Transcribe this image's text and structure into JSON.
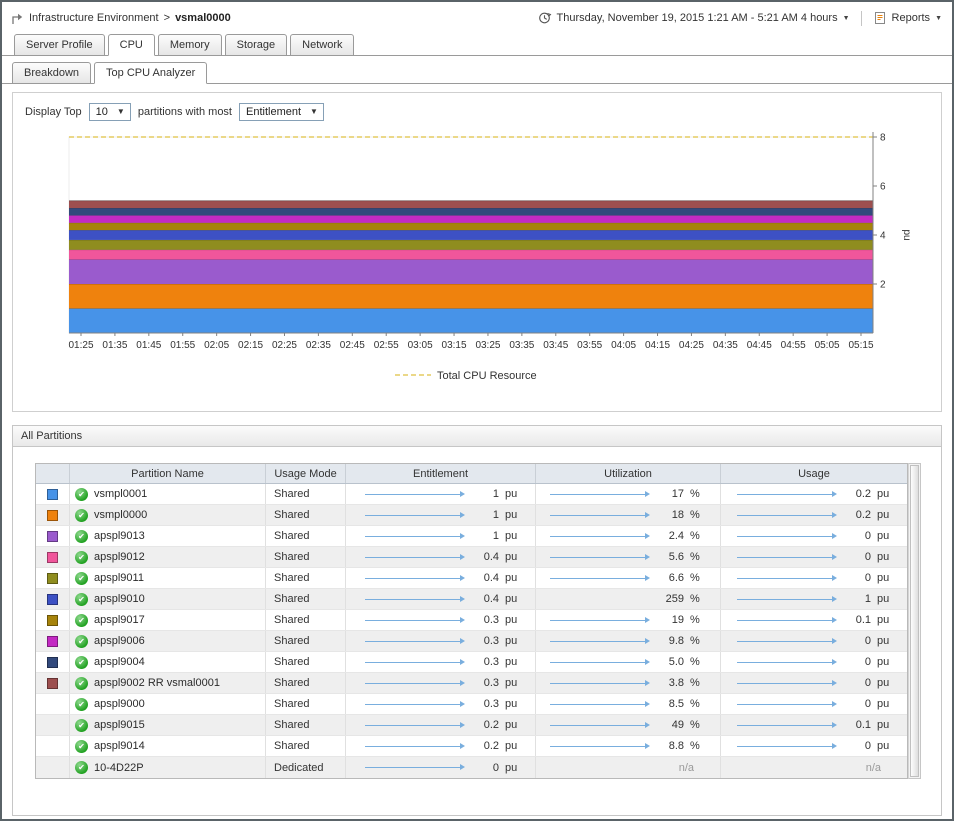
{
  "header": {
    "breadcrumb": {
      "root": "Infrastructure Environment",
      "separator": ">",
      "current": "vsmal0000"
    },
    "time_range": {
      "label": "Thursday, November 19, 2015 1:21 AM - 5:21 AM 4 hours"
    },
    "reports": {
      "label": "Reports"
    }
  },
  "tabs": {
    "items": [
      "Server Profile",
      "CPU",
      "Memory",
      "Storage",
      "Network"
    ],
    "active": "CPU"
  },
  "subtabs": {
    "items": [
      "Breakdown",
      "Top CPU Analyzer"
    ],
    "active": "Top CPU Analyzer"
  },
  "controls": {
    "label_prefix": "Display Top",
    "top_value": "10",
    "label_middle": "partitions with most",
    "metric_value": "Entitlement"
  },
  "chart_data": {
    "type": "area",
    "stacked": true,
    "title": "",
    "ylabel": "pu",
    "ylim": [
      0,
      8
    ],
    "yticks": [
      2,
      4,
      6,
      8
    ],
    "x": [
      "01:25",
      "01:35",
      "01:45",
      "01:55",
      "02:05",
      "02:15",
      "02:25",
      "02:35",
      "02:45",
      "02:55",
      "03:05",
      "03:15",
      "03:25",
      "03:35",
      "03:45",
      "03:55",
      "04:05",
      "04:15",
      "04:25",
      "04:35",
      "04:45",
      "04:55",
      "05:05",
      "05:15"
    ],
    "series_note": "each series is constant (flat) across the whole time range; stacked bottom-to-top in listed order",
    "series": [
      {
        "name": "vsmpl0001",
        "color": "#4793e8",
        "value": 1
      },
      {
        "name": "vsmpl0000",
        "color": "#ef820d",
        "value": 1
      },
      {
        "name": "apspl9013",
        "color": "#9a5bcd",
        "value": 1
      },
      {
        "name": "apspl9012",
        "color": "#f0569b",
        "value": 0.4
      },
      {
        "name": "apspl9011",
        "color": "#8f8d1f",
        "value": 0.4
      },
      {
        "name": "apspl9010",
        "color": "#3d51c4",
        "value": 0.4
      },
      {
        "name": "apspl9017",
        "color": "#a6830b",
        "value": 0.3
      },
      {
        "name": "apspl9006",
        "color": "#c32ac3",
        "value": 0.3
      },
      {
        "name": "apspl9004",
        "color": "#32497c",
        "value": 0.3
      },
      {
        "name": "apspl9002 RR vsmal0001",
        "color": "#9d4f4f",
        "value": 0.3
      }
    ],
    "total_line": {
      "label": "Total CPU Resource",
      "value": 8,
      "color": "#dfc040",
      "style": "dashed"
    },
    "legend": {
      "position": "bottom",
      "entries": [
        "Total CPU Resource"
      ]
    }
  },
  "table": {
    "title": "All Partitions",
    "columns": [
      {
        "key": "swatch",
        "label": ""
      },
      {
        "key": "name",
        "label": "Partition Name"
      },
      {
        "key": "mode",
        "label": "Usage Mode"
      },
      {
        "key": "entitlement",
        "label": "Entitlement"
      },
      {
        "key": "utilization",
        "label": "Utilization"
      },
      {
        "key": "usage",
        "label": "Usage"
      }
    ],
    "rows": [
      {
        "color": "#4793e8",
        "status": "ok",
        "name": "vsmpl0001",
        "usage_mode": "Shared",
        "entitlement": {
          "value": "1",
          "unit": "pu",
          "spark": true
        },
        "utilization": {
          "value": "17",
          "unit": "%",
          "spark": true
        },
        "usage": {
          "value": "0.2",
          "unit": "pu",
          "spark": true
        }
      },
      {
        "color": "#ef820d",
        "status": "ok",
        "name": "vsmpl0000",
        "usage_mode": "Shared",
        "entitlement": {
          "value": "1",
          "unit": "pu",
          "spark": true
        },
        "utilization": {
          "value": "18",
          "unit": "%",
          "spark": true
        },
        "usage": {
          "value": "0.2",
          "unit": "pu",
          "spark": true
        }
      },
      {
        "color": "#9a5bcd",
        "status": "ok",
        "name": "apspl9013",
        "usage_mode": "Shared",
        "entitlement": {
          "value": "1",
          "unit": "pu",
          "spark": true
        },
        "utilization": {
          "value": "2.4",
          "unit": "%",
          "spark": true
        },
        "usage": {
          "value": "0",
          "unit": "pu",
          "spark": true
        }
      },
      {
        "color": "#f0569b",
        "status": "ok",
        "name": "apspl9012",
        "usage_mode": "Shared",
        "entitlement": {
          "value": "0.4",
          "unit": "pu",
          "spark": true
        },
        "utilization": {
          "value": "5.6",
          "unit": "%",
          "spark": true
        },
        "usage": {
          "value": "0",
          "unit": "pu",
          "spark": true
        }
      },
      {
        "color": "#8f8d1f",
        "status": "ok",
        "name": "apspl9011",
        "usage_mode": "Shared",
        "entitlement": {
          "value": "0.4",
          "unit": "pu",
          "spark": true
        },
        "utilization": {
          "value": "6.6",
          "unit": "%",
          "spark": true
        },
        "usage": {
          "value": "0",
          "unit": "pu",
          "spark": true
        }
      },
      {
        "color": "#3d51c4",
        "status": "ok",
        "name": "apspl9010",
        "usage_mode": "Shared",
        "entitlement": {
          "value": "0.4",
          "unit": "pu",
          "spark": true
        },
        "utilization": {
          "value": "259",
          "unit": "%",
          "spark": false
        },
        "usage": {
          "value": "1",
          "unit": "pu",
          "spark": true
        }
      },
      {
        "color": "#a6830b",
        "status": "ok",
        "name": "apspl9017",
        "usage_mode": "Shared",
        "entitlement": {
          "value": "0.3",
          "unit": "pu",
          "spark": true
        },
        "utilization": {
          "value": "19",
          "unit": "%",
          "spark": true
        },
        "usage": {
          "value": "0.1",
          "unit": "pu",
          "spark": true
        }
      },
      {
        "color": "#c32ac3",
        "status": "ok",
        "name": "apspl9006",
        "usage_mode": "Shared",
        "entitlement": {
          "value": "0.3",
          "unit": "pu",
          "spark": true
        },
        "utilization": {
          "value": "9.8",
          "unit": "%",
          "spark": true
        },
        "usage": {
          "value": "0",
          "unit": "pu",
          "spark": true
        }
      },
      {
        "color": "#32497c",
        "status": "ok",
        "name": "apspl9004",
        "usage_mode": "Shared",
        "entitlement": {
          "value": "0.3",
          "unit": "pu",
          "spark": true
        },
        "utilization": {
          "value": "5.0",
          "unit": "%",
          "spark": true
        },
        "usage": {
          "value": "0",
          "unit": "pu",
          "spark": true
        }
      },
      {
        "color": "#9d4f4f",
        "status": "ok",
        "name": "apspl9002 RR vsmal0001",
        "usage_mode": "Shared",
        "entitlement": {
          "value": "0.3",
          "unit": "pu",
          "spark": true
        },
        "utilization": {
          "value": "3.8",
          "unit": "%",
          "spark": true
        },
        "usage": {
          "value": "0",
          "unit": "pu",
          "spark": true
        }
      },
      {
        "color": null,
        "status": "ok",
        "name": "apspl9000",
        "usage_mode": "Shared",
        "entitlement": {
          "value": "0.3",
          "unit": "pu",
          "spark": true
        },
        "utilization": {
          "value": "8.5",
          "unit": "%",
          "spark": true
        },
        "usage": {
          "value": "0",
          "unit": "pu",
          "spark": true
        }
      },
      {
        "color": null,
        "status": "ok",
        "name": "apspl9015",
        "usage_mode": "Shared",
        "entitlement": {
          "value": "0.2",
          "unit": "pu",
          "spark": true
        },
        "utilization": {
          "value": "49",
          "unit": "%",
          "spark": true
        },
        "usage": {
          "value": "0.1",
          "unit": "pu",
          "spark": true
        }
      },
      {
        "color": null,
        "status": "ok",
        "name": "apspl9014",
        "usage_mode": "Shared",
        "entitlement": {
          "value": "0.2",
          "unit": "pu",
          "spark": true
        },
        "utilization": {
          "value": "8.8",
          "unit": "%",
          "spark": true
        },
        "usage": {
          "value": "0",
          "unit": "pu",
          "spark": true
        }
      },
      {
        "color": null,
        "status": "ok",
        "name": "10-4D22P",
        "usage_mode": "Dedicated",
        "entitlement": {
          "value": "0",
          "unit": "pu",
          "spark": true
        },
        "utilization": {
          "value": "n/a",
          "unit": "",
          "spark": false
        },
        "usage": {
          "value": "n/a",
          "unit": "",
          "spark": false
        }
      }
    ]
  },
  "theme": {
    "spark_color": "#79aede",
    "total_line_color": "#dfc040",
    "status_ok_color": "#21a121",
    "header_bg": "#e3e8ee"
  }
}
